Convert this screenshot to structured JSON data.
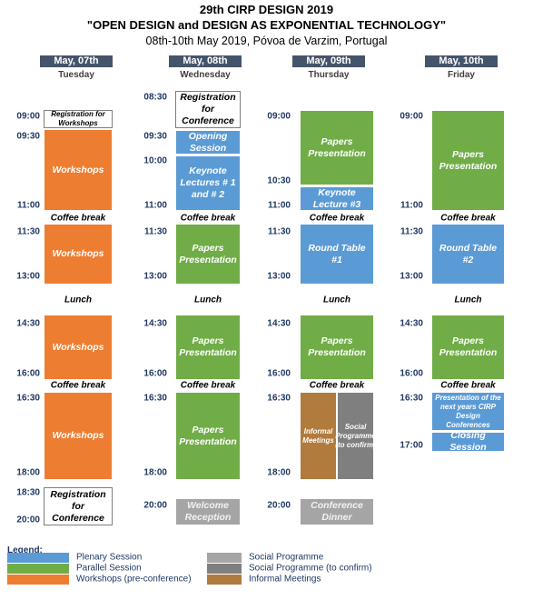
{
  "header": {
    "title": "29th CIRP DESIGN 2019",
    "subtitle": "\"OPEN DESIGN and DESIGN AS EXPONENTIAL TECHNOLOGY\"",
    "dates": "08th-10th May 2019, Póvoa de Varzim, Portugal"
  },
  "days": [
    {
      "date": "May, 07th",
      "weekday": "Tuesday",
      "times": [
        "09:00",
        "09:30",
        "11:00",
        "11:30",
        "13:00",
        "14:30",
        "16:00",
        "16:30",
        "18:00",
        "18:30",
        "20:00"
      ],
      "sessions": [
        "Registration for Workshops",
        "Workshops",
        "Workshops",
        "Workshops",
        "Workshops",
        "Registration for Conference"
      ],
      "breaks": [
        "Coffee break",
        "Lunch",
        "Coffee break"
      ]
    },
    {
      "date": "May, 08th",
      "weekday": "Wednesday",
      "times": [
        "08:30",
        "09:30",
        "10:00",
        "11:00",
        "11:30",
        "13:00",
        "14:30",
        "16:00",
        "16:30",
        "18:00",
        "20:00"
      ],
      "sessions": [
        "Registration for Conference",
        "Opening Session",
        "Keynote Lectures # 1 and # 2",
        "Papers Presentation",
        "Papers Presentation",
        "Papers Presentation",
        "Welcome Reception"
      ],
      "breaks": [
        "Coffee break",
        "Lunch",
        "Coffee break"
      ]
    },
    {
      "date": "May, 09th",
      "weekday": "Thursday",
      "times": [
        "09:00",
        "10:30",
        "11:00",
        "11:30",
        "13:00",
        "14:30",
        "16:00",
        "16:30",
        "18:00",
        "20:00"
      ],
      "sessions": [
        "Papers Presentation",
        "Keynote Lecture #3",
        "Round Table #1",
        "Papers Presentation",
        "Informal Meetings",
        "Social Programme (to confirm)",
        "Conference Dinner"
      ],
      "breaks": [
        "Coffee break",
        "Lunch",
        "Coffee break"
      ]
    },
    {
      "date": "May, 10th",
      "weekday": "Friday",
      "times": [
        "09:00",
        "11:00",
        "11:30",
        "13:00",
        "14:30",
        "16:00",
        "16:30",
        "17:00"
      ],
      "sessions": [
        "Papers Presentation",
        "Round Table #2",
        "Papers Presentation",
        "Presentation of the next years CIRP Design Conferences",
        "Closing Session"
      ],
      "breaks": [
        "Coffee break",
        "Lunch",
        "Coffee break"
      ]
    }
  ],
  "legend": {
    "title": "Legend:",
    "items": [
      "Plenary Session",
      "Parallel Session",
      "Workshops (pre-conference)",
      "Social Programme",
      "Social Programme (to confirm)",
      "Informal Meetings"
    ]
  }
}
